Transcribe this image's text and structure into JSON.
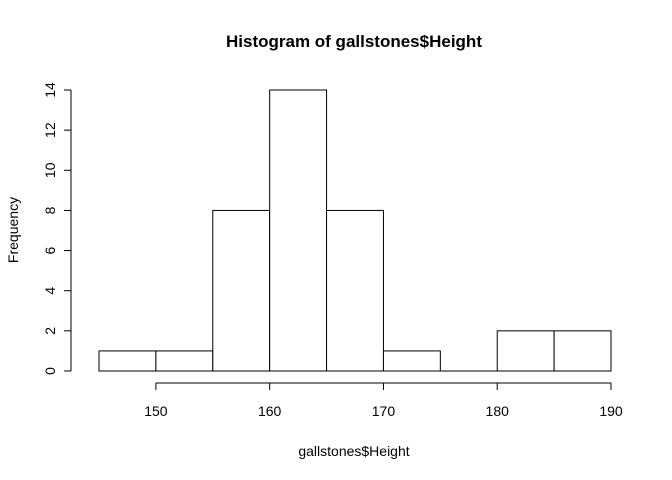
{
  "chart_data": {
    "type": "bar",
    "title": "Histogram of gallstones$Height",
    "xlabel": "gallstones$Height",
    "ylabel": "Frequency",
    "bins": [
      {
        "start": 145,
        "end": 150,
        "count": 1
      },
      {
        "start": 150,
        "end": 155,
        "count": 1
      },
      {
        "start": 155,
        "end": 160,
        "count": 8
      },
      {
        "start": 160,
        "end": 165,
        "count": 14
      },
      {
        "start": 165,
        "end": 170,
        "count": 8
      },
      {
        "start": 170,
        "end": 175,
        "count": 1
      },
      {
        "start": 175,
        "end": 180,
        "count": 0
      },
      {
        "start": 180,
        "end": 185,
        "count": 2
      },
      {
        "start": 185,
        "end": 190,
        "count": 2
      }
    ],
    "x_ticks": [
      150,
      160,
      170,
      180,
      190
    ],
    "y_ticks": [
      0,
      2,
      4,
      6,
      8,
      10,
      12,
      14
    ],
    "xlim": [
      145,
      190
    ],
    "ylim": [
      0,
      14
    ],
    "grid": false
  }
}
